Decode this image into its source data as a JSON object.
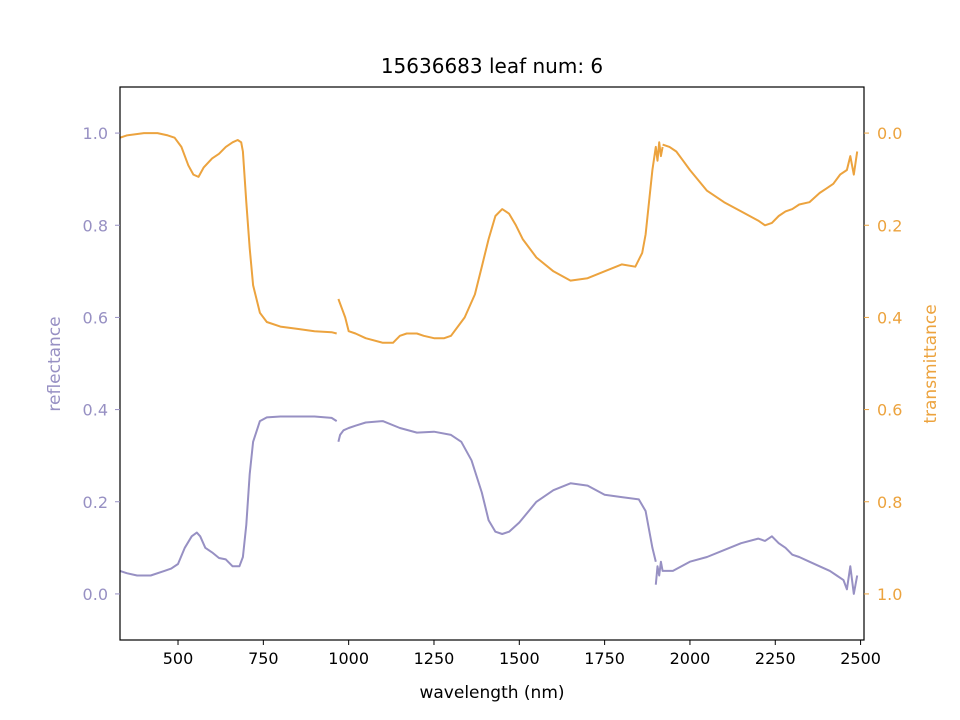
{
  "chart_data": {
    "type": "line",
    "title": "15636683 leaf num: 6",
    "xlabel": "wavelength (nm)",
    "ylabel_left": "reflectance",
    "ylabel_right": "transmittance",
    "xlim": [
      330,
      2510
    ],
    "ylim_left": [
      -0.1,
      1.1
    ],
    "ylim_right": [
      1.1,
      -0.1
    ],
    "right_axis_inverted": true,
    "x_ticks": [
      500,
      750,
      1000,
      1250,
      1500,
      1750,
      2000,
      2250,
      2500
    ],
    "x_tick_labels": [
      "500",
      "750",
      "1000",
      "1250",
      "1500",
      "1750",
      "2000",
      "2250",
      "2500"
    ],
    "y_left_ticks": [
      0.0,
      0.2,
      0.4,
      0.6,
      0.8,
      1.0
    ],
    "y_left_tick_labels": [
      "0.0",
      "0.2",
      "0.4",
      "0.6",
      "0.8",
      "1.0"
    ],
    "y_right_ticks": [
      0.0,
      0.2,
      0.4,
      0.6,
      0.8,
      1.0
    ],
    "y_right_tick_labels": [
      "0.0",
      "0.2",
      "0.4",
      "0.6",
      "0.8",
      "1.0"
    ],
    "grid": false,
    "legend": "none",
    "colors": {
      "reflectance": "#9790c3",
      "transmittance": "#eca33e"
    },
    "series": [
      {
        "axis": "left",
        "x": [
          330,
          350,
          380,
          420,
          460,
          480,
          500,
          520,
          540,
          555,
          565,
          580,
          600,
          620,
          640,
          660,
          680,
          690,
          700,
          710,
          720,
          740,
          760,
          800,
          850,
          900,
          950,
          965
        ],
        "y": [
          0.05,
          0.045,
          0.04,
          0.04,
          0.05,
          0.055,
          0.065,
          0.1,
          0.125,
          0.133,
          0.125,
          0.1,
          0.09,
          0.078,
          0.075,
          0.06,
          0.06,
          0.08,
          0.15,
          0.26,
          0.33,
          0.375,
          0.383,
          0.385,
          0.385,
          0.385,
          0.382,
          0.375
        ]
      },
      {
        "axis": "left",
        "x": [
          970,
          975,
          985,
          1000,
          1020,
          1050,
          1100,
          1150,
          1200,
          1250,
          1300,
          1330,
          1360,
          1390,
          1410,
          1430,
          1450,
          1470,
          1500,
          1550,
          1600,
          1650,
          1700,
          1750,
          1800,
          1850,
          1870,
          1880,
          1890,
          1900
        ],
        "y": [
          0.33,
          0.345,
          0.355,
          0.36,
          0.365,
          0.372,
          0.375,
          0.36,
          0.35,
          0.352,
          0.345,
          0.33,
          0.29,
          0.22,
          0.16,
          0.135,
          0.13,
          0.135,
          0.155,
          0.2,
          0.225,
          0.24,
          0.235,
          0.215,
          0.21,
          0.205,
          0.18,
          0.14,
          0.1,
          0.07
        ]
      },
      {
        "axis": "left",
        "x": [
          1900,
          1905,
          1910,
          1915,
          1920,
          1950,
          2000,
          2050,
          2100,
          2150,
          2200,
          2220,
          2240,
          2260,
          2280,
          2300,
          2320,
          2350,
          2380,
          2410,
          2430,
          2450,
          2460,
          2470,
          2480,
          2490
        ],
        "y": [
          0.02,
          0.06,
          0.04,
          0.07,
          0.05,
          0.05,
          0.07,
          0.08,
          0.095,
          0.11,
          0.12,
          0.115,
          0.125,
          0.11,
          0.1,
          0.085,
          0.08,
          0.07,
          0.06,
          0.05,
          0.04,
          0.03,
          0.01,
          0.06,
          0.0,
          0.04
        ]
      },
      {
        "axis": "right",
        "x": [
          330,
          350,
          400,
          440,
          470,
          490,
          510,
          530,
          545,
          560,
          575,
          600,
          620,
          640,
          660,
          675,
          685,
          690,
          700,
          710,
          720,
          740,
          760,
          800,
          850,
          900,
          950,
          965
        ],
        "y": [
          0.01,
          0.005,
          0.0,
          0.0,
          0.005,
          0.01,
          0.03,
          0.07,
          0.09,
          0.095,
          0.075,
          0.055,
          0.045,
          0.03,
          0.02,
          0.015,
          0.02,
          0.04,
          0.15,
          0.25,
          0.33,
          0.39,
          0.41,
          0.42,
          0.425,
          0.43,
          0.432,
          0.435
        ]
      },
      {
        "axis": "right",
        "x": [
          970,
          975,
          980,
          990,
          1000,
          1020,
          1050,
          1100,
          1130,
          1150,
          1170,
          1200,
          1220,
          1250,
          1280,
          1300,
          1340,
          1370,
          1390,
          1410,
          1430,
          1450,
          1470,
          1490,
          1510,
          1550,
          1600,
          1650,
          1700,
          1750,
          1800,
          1840,
          1860,
          1870,
          1880,
          1890,
          1900,
          1905,
          1910,
          1915,
          1920
        ],
        "y": [
          0.36,
          0.37,
          0.38,
          0.4,
          0.43,
          0.435,
          0.445,
          0.455,
          0.455,
          0.44,
          0.435,
          0.435,
          0.44,
          0.445,
          0.445,
          0.44,
          0.4,
          0.35,
          0.29,
          0.23,
          0.18,
          0.165,
          0.175,
          0.2,
          0.23,
          0.27,
          0.3,
          0.32,
          0.315,
          0.3,
          0.285,
          0.29,
          0.26,
          0.22,
          0.15,
          0.08,
          0.03,
          0.06,
          0.02,
          0.05,
          0.03
        ]
      },
      {
        "axis": "right",
        "x": [
          1920,
          1940,
          1960,
          1980,
          2000,
          2050,
          2100,
          2150,
          2200,
          2220,
          2240,
          2260,
          2280,
          2300,
          2320,
          2350,
          2380,
          2400,
          2420,
          2440,
          2460,
          2470,
          2480,
          2490
        ],
        "y": [
          0.025,
          0.03,
          0.04,
          0.06,
          0.08,
          0.125,
          0.15,
          0.17,
          0.19,
          0.2,
          0.195,
          0.18,
          0.17,
          0.165,
          0.155,
          0.15,
          0.13,
          0.12,
          0.11,
          0.09,
          0.08,
          0.05,
          0.09,
          0.04
        ]
      }
    ]
  }
}
